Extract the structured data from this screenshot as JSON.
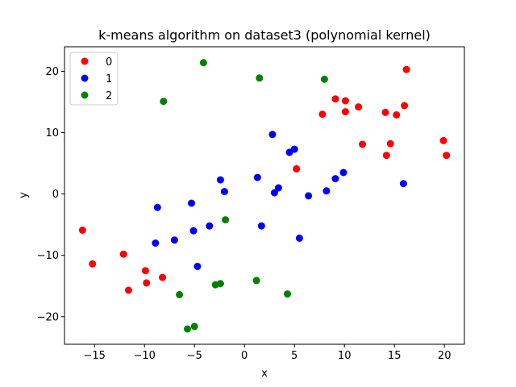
{
  "chart_data": {
    "type": "scatter",
    "title": "k-means algorithm on dataset3 (polynomial kernel)",
    "xlabel": "x",
    "ylabel": "y",
    "xlim": [
      -18,
      22
    ],
    "ylim": [
      -24.5,
      24
    ],
    "xticks": [
      -15,
      -10,
      -5,
      0,
      5,
      10,
      15,
      20
    ],
    "yticks": [
      -20,
      -10,
      0,
      10,
      20
    ],
    "grid": false,
    "legend": "top-left",
    "series": [
      {
        "name": "0",
        "color": "#ff0000",
        "points": [
          [
            -16.2,
            -5.9
          ],
          [
            -15.2,
            -11.4
          ],
          [
            -12.1,
            -9.8
          ],
          [
            -11.6,
            -15.7
          ],
          [
            -9.9,
            -12.5
          ],
          [
            -9.8,
            -14.5
          ],
          [
            -8.2,
            -13.6
          ],
          [
            5.2,
            4.1
          ],
          [
            7.8,
            13.0
          ],
          [
            9.1,
            15.5
          ],
          [
            10.1,
            15.2
          ],
          [
            10.1,
            13.4
          ],
          [
            11.4,
            14.2
          ],
          [
            11.8,
            8.1
          ],
          [
            14.1,
            13.3
          ],
          [
            14.2,
            6.3
          ],
          [
            14.6,
            8.2
          ],
          [
            15.2,
            12.9
          ],
          [
            16.0,
            14.4
          ],
          [
            16.2,
            20.3
          ],
          [
            19.9,
            8.7
          ],
          [
            20.2,
            6.3
          ]
        ]
      },
      {
        "name": "1",
        "color": "#0000ff",
        "points": [
          [
            -8.7,
            -2.2
          ],
          [
            -8.9,
            -8.0
          ],
          [
            -7.0,
            -7.5
          ],
          [
            -5.3,
            -1.5
          ],
          [
            -5.1,
            -6.0
          ],
          [
            -4.7,
            -11.8
          ],
          [
            -3.5,
            -5.2
          ],
          [
            -2.4,
            2.3
          ],
          [
            -2.0,
            0.4
          ],
          [
            1.3,
            2.7
          ],
          [
            1.7,
            -5.2
          ],
          [
            2.8,
            9.7
          ],
          [
            3.0,
            0.2
          ],
          [
            3.4,
            1.0
          ],
          [
            4.5,
            6.8
          ],
          [
            5.0,
            7.3
          ],
          [
            5.5,
            -7.2
          ],
          [
            6.4,
            -0.3
          ],
          [
            8.2,
            0.5
          ],
          [
            9.1,
            2.5
          ],
          [
            9.9,
            3.5
          ],
          [
            15.9,
            1.7
          ]
        ]
      },
      {
        "name": "2",
        "color": "#008000",
        "points": [
          [
            -4.1,
            21.4
          ],
          [
            -8.1,
            15.1
          ],
          [
            1.5,
            18.9
          ],
          [
            8.0,
            18.7
          ],
          [
            -1.9,
            -4.2
          ],
          [
            -6.5,
            -16.4
          ],
          [
            -2.9,
            -14.8
          ],
          [
            -2.4,
            -14.6
          ],
          [
            1.2,
            -14.1
          ],
          [
            4.3,
            -16.3
          ],
          [
            -5.7,
            -22.0
          ],
          [
            -5.0,
            -21.6
          ]
        ]
      }
    ]
  }
}
